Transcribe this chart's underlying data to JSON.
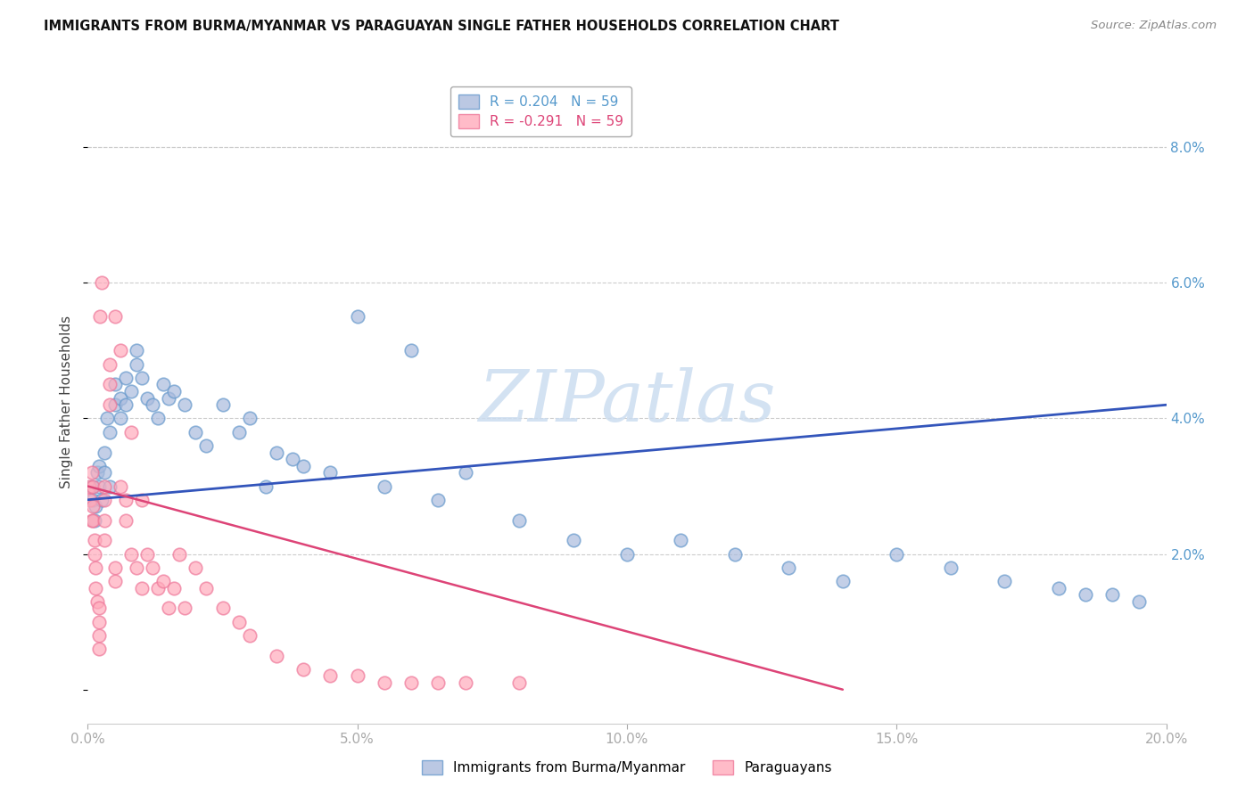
{
  "title": "IMMIGRANTS FROM BURMA/MYANMAR VS PARAGUAYAN SINGLE FATHER HOUSEHOLDS CORRELATION CHART",
  "source": "Source: ZipAtlas.com",
  "ylabel": "Single Father Households",
  "xlim": [
    0.0,
    0.2
  ],
  "ylim": [
    -0.005,
    0.09
  ],
  "xticks": [
    0.0,
    0.05,
    0.1,
    0.15,
    0.2
  ],
  "xtick_labels": [
    "0.0%",
    "5.0%",
    "10.0%",
    "15.0%",
    "20.0%"
  ],
  "yticks_right": [
    0.02,
    0.04,
    0.06,
    0.08
  ],
  "ytick_labels_right": [
    "2.0%",
    "4.0%",
    "6.0%",
    "8.0%"
  ],
  "grid_color": "#cccccc",
  "blue_color": "#aabbdd",
  "pink_color": "#ffaabb",
  "blue_edge_color": "#6699cc",
  "pink_edge_color": "#ee7799",
  "blue_line_color": "#3355bb",
  "pink_line_color": "#dd4477",
  "R_blue": 0.204,
  "N_blue": 59,
  "R_pink": -0.291,
  "N_pink": 59,
  "legend_label_blue": "Immigrants from Burma/Myanmar",
  "legend_label_pink": "Paraguayans",
  "watermark": "ZIPatlas",
  "watermark_color": "#ccddeebb",
  "title_fontsize": 10.5,
  "tick_color": "#5599cc",
  "blue_line_x": [
    0.0,
    0.2
  ],
  "blue_line_y": [
    0.028,
    0.042
  ],
  "pink_line_x": [
    0.0,
    0.14
  ],
  "pink_line_y": [
    0.03,
    0.0
  ],
  "blue_scatter_x": [
    0.0008,
    0.001,
    0.0012,
    0.0015,
    0.0018,
    0.002,
    0.002,
    0.0025,
    0.003,
    0.003,
    0.0035,
    0.004,
    0.004,
    0.005,
    0.005,
    0.006,
    0.006,
    0.007,
    0.007,
    0.008,
    0.009,
    0.009,
    0.01,
    0.011,
    0.012,
    0.013,
    0.014,
    0.015,
    0.016,
    0.018,
    0.02,
    0.022,
    0.025,
    0.028,
    0.03,
    0.033,
    0.035,
    0.038,
    0.04,
    0.045,
    0.05,
    0.055,
    0.06,
    0.065,
    0.07,
    0.08,
    0.09,
    0.1,
    0.11,
    0.12,
    0.13,
    0.14,
    0.15,
    0.16,
    0.17,
    0.18,
    0.185,
    0.19,
    0.195
  ],
  "blue_scatter_y": [
    0.03,
    0.028,
    0.025,
    0.027,
    0.032,
    0.03,
    0.033,
    0.028,
    0.035,
    0.032,
    0.04,
    0.038,
    0.03,
    0.045,
    0.042,
    0.043,
    0.04,
    0.046,
    0.042,
    0.044,
    0.048,
    0.05,
    0.046,
    0.043,
    0.042,
    0.04,
    0.045,
    0.043,
    0.044,
    0.042,
    0.038,
    0.036,
    0.042,
    0.038,
    0.04,
    0.03,
    0.035,
    0.034,
    0.033,
    0.032,
    0.055,
    0.03,
    0.05,
    0.028,
    0.032,
    0.025,
    0.022,
    0.02,
    0.022,
    0.02,
    0.018,
    0.016,
    0.02,
    0.018,
    0.016,
    0.015,
    0.014,
    0.014,
    0.013
  ],
  "pink_scatter_x": [
    0.0003,
    0.0005,
    0.0007,
    0.0008,
    0.001,
    0.001,
    0.001,
    0.0012,
    0.0013,
    0.0015,
    0.0015,
    0.0018,
    0.002,
    0.002,
    0.002,
    0.002,
    0.0022,
    0.0025,
    0.003,
    0.003,
    0.003,
    0.003,
    0.004,
    0.004,
    0.004,
    0.005,
    0.005,
    0.005,
    0.006,
    0.006,
    0.007,
    0.007,
    0.008,
    0.008,
    0.009,
    0.01,
    0.01,
    0.011,
    0.012,
    0.013,
    0.014,
    0.015,
    0.016,
    0.017,
    0.018,
    0.02,
    0.022,
    0.025,
    0.028,
    0.03,
    0.035,
    0.04,
    0.045,
    0.05,
    0.055,
    0.06,
    0.065,
    0.07,
    0.08
  ],
  "pink_scatter_y": [
    0.03,
    0.028,
    0.025,
    0.032,
    0.03,
    0.027,
    0.025,
    0.022,
    0.02,
    0.018,
    0.015,
    0.013,
    0.012,
    0.01,
    0.008,
    0.006,
    0.055,
    0.06,
    0.03,
    0.028,
    0.025,
    0.022,
    0.048,
    0.045,
    0.042,
    0.018,
    0.016,
    0.055,
    0.05,
    0.03,
    0.028,
    0.025,
    0.038,
    0.02,
    0.018,
    0.028,
    0.015,
    0.02,
    0.018,
    0.015,
    0.016,
    0.012,
    0.015,
    0.02,
    0.012,
    0.018,
    0.015,
    0.012,
    0.01,
    0.008,
    0.005,
    0.003,
    0.002,
    0.002,
    0.001,
    0.001,
    0.001,
    0.001,
    0.001
  ]
}
